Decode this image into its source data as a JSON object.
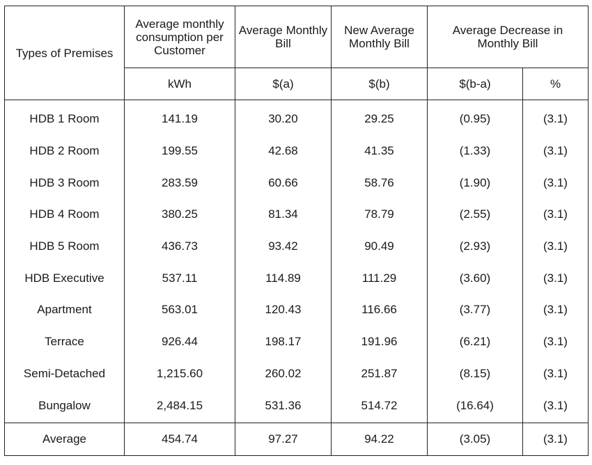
{
  "headers": {
    "premises": "Types of Premises",
    "consumption": "Average monthly consumption per Customer",
    "avg_bill": "Average Monthly Bill",
    "new_bill": "New Average Monthly Bill",
    "decrease": "Average Decrease in Monthly Bill"
  },
  "units": {
    "consumption": "kWh",
    "avg_bill": "$(a)",
    "new_bill": "$(b)",
    "decrease_abs": "$(b-a)",
    "decrease_pct": "%"
  },
  "rows": [
    {
      "type": "HDB 1 Room",
      "kwh": "141.19",
      "a": "30.20",
      "b": "29.25",
      "diff": "(0.95)",
      "pct": "(3.1)"
    },
    {
      "type": "HDB 2 Room",
      "kwh": "199.55",
      "a": "42.68",
      "b": "41.35",
      "diff": "(1.33)",
      "pct": "(3.1)"
    },
    {
      "type": "HDB 3 Room",
      "kwh": "283.59",
      "a": "60.66",
      "b": "58.76",
      "diff": "(1.90)",
      "pct": "(3.1)"
    },
    {
      "type": "HDB 4 Room",
      "kwh": "380.25",
      "a": "81.34",
      "b": "78.79",
      "diff": "(2.55)",
      "pct": "(3.1)"
    },
    {
      "type": "HDB 5 Room",
      "kwh": "436.73",
      "a": "93.42",
      "b": "90.49",
      "diff": "(2.93)",
      "pct": "(3.1)"
    },
    {
      "type": "HDB Executive",
      "kwh": "537.11",
      "a": "114.89",
      "b": "111.29",
      "diff": "(3.60)",
      "pct": "(3.1)"
    },
    {
      "type": "Apartment",
      "kwh": "563.01",
      "a": "120.43",
      "b": "116.66",
      "diff": "(3.77)",
      "pct": "(3.1)"
    },
    {
      "type": "Terrace",
      "kwh": "926.44",
      "a": "198.17",
      "b": "191.96",
      "diff": "(6.21)",
      "pct": "(3.1)"
    },
    {
      "type": "Semi-Detached",
      "kwh": "1,215.60",
      "a": "260.02",
      "b": "251.87",
      "diff": "(8.15)",
      "pct": "(3.1)"
    },
    {
      "type": "Bungalow",
      "kwh": "2,484.15",
      "a": "531.36",
      "b": "514.72",
      "diff": "(16.64)",
      "pct": "(3.1)"
    }
  ],
  "average": {
    "type": "Average",
    "kwh": "454.74",
    "a": "97.27",
    "b": "94.22",
    "diff": "(3.05)",
    "pct": "(3.1)"
  }
}
